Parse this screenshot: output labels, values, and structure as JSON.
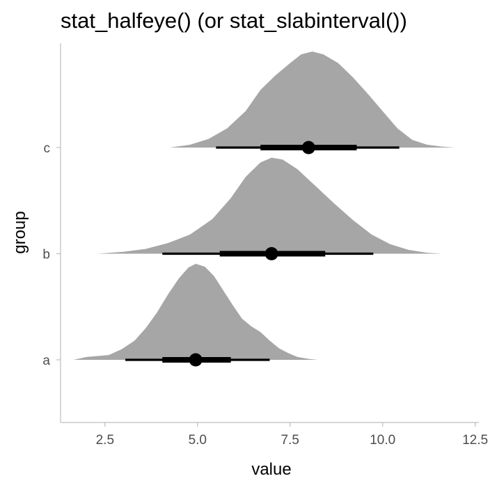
{
  "chart_data": {
    "type": "halfeye",
    "title": "stat_halfeye() (or stat_slabinterval())",
    "xlabel": "value",
    "ylabel": "group",
    "xlim": [
      1.3,
      12.6
    ],
    "x_ticks": [
      2.5,
      5.0,
      7.5,
      10.0,
      12.5
    ],
    "x_tick_labels": [
      "2.5",
      "5.0",
      "7.5",
      "10.0",
      "12.5"
    ],
    "categories": [
      "a",
      "b",
      "c"
    ],
    "grid": false,
    "colors": {
      "slab": "#a6a6a6",
      "interval": "#000000",
      "axis": "#bdbdbd",
      "tick_text": "#4d4d4d"
    },
    "groups": [
      {
        "name": "a",
        "point": 4.95,
        "interval_66": [
          4.05,
          5.9
        ],
        "interval_95": [
          3.05,
          6.95
        ],
        "density_x": [
          1.65,
          2.0,
          2.3,
          2.6,
          2.95,
          3.3,
          3.6,
          3.9,
          4.2,
          4.5,
          4.75,
          4.95,
          5.2,
          5.45,
          5.7,
          5.95,
          6.2,
          6.45,
          6.7,
          6.95,
          7.2,
          7.45,
          7.7,
          8.0,
          8.25
        ],
        "density_y": [
          0.0,
          0.03,
          0.04,
          0.05,
          0.11,
          0.2,
          0.33,
          0.49,
          0.68,
          0.85,
          0.96,
          1.0,
          0.97,
          0.87,
          0.72,
          0.57,
          0.43,
          0.35,
          0.29,
          0.2,
          0.12,
          0.07,
          0.03,
          0.01,
          0.0
        ]
      },
      {
        "name": "b",
        "point": 7.0,
        "interval_66": [
          5.6,
          8.45
        ],
        "interval_95": [
          4.05,
          9.75
        ],
        "density_x": [
          2.3,
          3.0,
          3.6,
          4.2,
          4.8,
          5.4,
          5.9,
          6.3,
          6.7,
          7.0,
          7.3,
          7.7,
          8.2,
          8.7,
          9.2,
          9.7,
          10.2,
          10.7,
          11.2,
          11.6
        ],
        "density_y": [
          0.0,
          0.02,
          0.05,
          0.11,
          0.2,
          0.36,
          0.58,
          0.8,
          0.95,
          1.0,
          0.98,
          0.88,
          0.7,
          0.52,
          0.35,
          0.2,
          0.1,
          0.04,
          0.01,
          0.0
        ]
      },
      {
        "name": "c",
        "point": 8.0,
        "interval_66": [
          6.7,
          9.3
        ],
        "interval_95": [
          5.5,
          10.45
        ],
        "density_x": [
          4.25,
          4.8,
          5.3,
          5.8,
          6.3,
          6.7,
          7.1,
          7.5,
          7.8,
          8.1,
          8.4,
          8.8,
          9.2,
          9.6,
          10.0,
          10.4,
          10.8,
          11.2,
          11.6,
          11.95
        ],
        "density_y": [
          0.0,
          0.03,
          0.09,
          0.2,
          0.38,
          0.6,
          0.75,
          0.88,
          0.97,
          1.0,
          0.97,
          0.88,
          0.73,
          0.56,
          0.38,
          0.2,
          0.08,
          0.03,
          0.01,
          0.0
        ]
      }
    ]
  }
}
